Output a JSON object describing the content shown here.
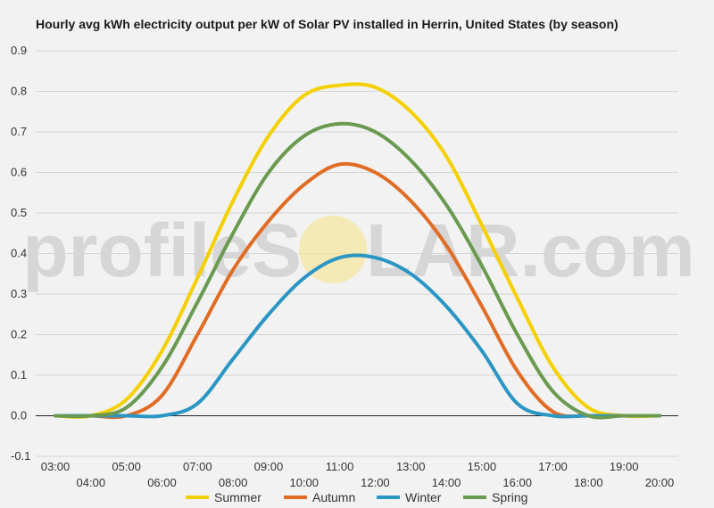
{
  "chart_data": {
    "type": "line",
    "title": "Hourly avg kWh electricity output per kW of Solar PV installed in Herrin, United States (by season)",
    "xlabel": "",
    "ylabel": "",
    "ylim": [
      -0.1,
      0.9
    ],
    "yticks": [
      -0.1,
      0.0,
      0.1,
      0.2,
      0.3,
      0.4,
      0.5,
      0.6,
      0.7,
      0.8,
      0.9
    ],
    "ytick_labels": [
      "-0.1",
      "0.0",
      "0.1",
      "0.2",
      "0.3",
      "0.4",
      "0.5",
      "0.6",
      "0.7",
      "0.8",
      "0.9"
    ],
    "xlim": [
      3,
      20
    ],
    "xtick_labels": [
      "03:00",
      "04:00",
      "05:00",
      "06:00",
      "07:00",
      "08:00",
      "09:00",
      "10:00",
      "11:00",
      "12:00",
      "13:00",
      "14:00",
      "15:00",
      "16:00",
      "17:00",
      "18:00",
      "19:00",
      "20:00"
    ],
    "x": [
      3,
      4,
      5,
      6,
      7,
      8,
      9,
      10,
      11,
      12,
      13,
      14,
      15,
      16,
      17,
      18,
      19,
      20
    ],
    "grid": true,
    "legend_position": "bottom",
    "series": [
      {
        "name": "Summer",
        "color": "#f5d000",
        "values": [
          0.0,
          0.0,
          0.04,
          0.16,
          0.34,
          0.53,
          0.69,
          0.79,
          0.815,
          0.81,
          0.75,
          0.64,
          0.47,
          0.29,
          0.12,
          0.02,
          0.0,
          0.0
        ]
      },
      {
        "name": "Autumn",
        "color": "#e06d25",
        "values": [
          0.0,
          0.0,
          0.0,
          0.05,
          0.2,
          0.36,
          0.48,
          0.57,
          0.62,
          0.6,
          0.53,
          0.42,
          0.27,
          0.11,
          0.01,
          0.0,
          0.0,
          0.0
        ]
      },
      {
        "name": "Winter",
        "color": "#2a96c4",
        "values": [
          0.0,
          0.0,
          0.0,
          0.0,
          0.03,
          0.14,
          0.25,
          0.34,
          0.39,
          0.39,
          0.35,
          0.27,
          0.16,
          0.03,
          0.0,
          0.0,
          0.0,
          0.0
        ]
      },
      {
        "name": "Spring",
        "color": "#6a9a50",
        "values": [
          0.0,
          0.0,
          0.02,
          0.12,
          0.28,
          0.45,
          0.6,
          0.69,
          0.72,
          0.7,
          0.63,
          0.52,
          0.37,
          0.2,
          0.06,
          0.0,
          0.0,
          0.0
        ]
      }
    ]
  },
  "watermark": {
    "left": "profileS",
    "right": "LAR.com"
  }
}
